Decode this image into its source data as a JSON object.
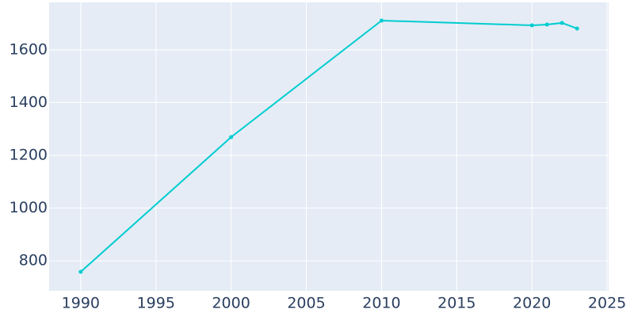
{
  "chart_data": {
    "type": "line",
    "x": [
      1990,
      2000,
      2010,
      2020,
      2021,
      2022,
      2023
    ],
    "series": [
      {
        "color": "#00cdd0",
        "values": [
          758,
          1269,
          1711,
          1693,
          1696,
          1702,
          1681
        ]
      }
    ],
    "xlim": [
      1987.9,
      2025.1
    ],
    "xticks": [
      1990,
      1995,
      2000,
      2005,
      2010,
      2015,
      2020,
      2025
    ],
    "ylim": [
      686,
      1780
    ],
    "yticks": [
      800,
      1000,
      1200,
      1400,
      1600
    ],
    "grid": true
  }
}
